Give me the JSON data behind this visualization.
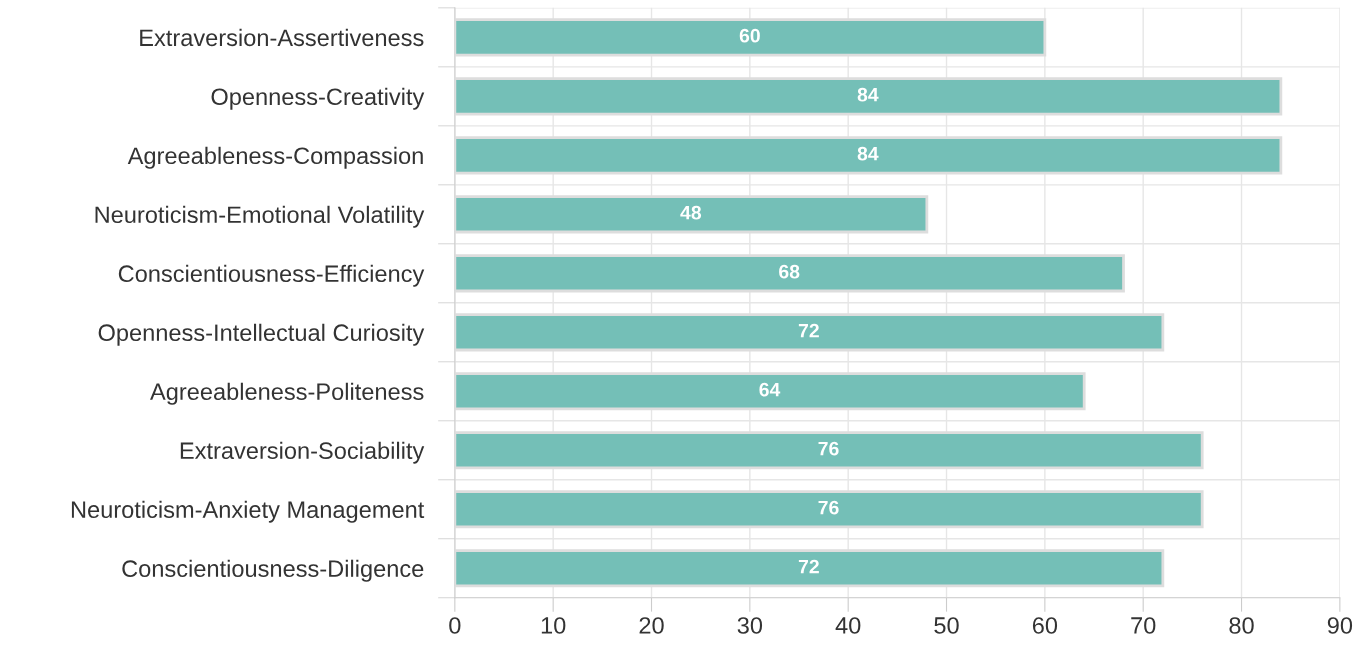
{
  "chart_data": {
    "type": "bar",
    "orientation": "horizontal",
    "categories": [
      "Extraversion-Assertiveness",
      "Openness-Creativity",
      "Agreeableness-Compassion",
      "Neuroticism-Emotional Volatility",
      "Conscientiousness-Efficiency",
      "Openness-Intellectual Curiosity",
      "Agreeableness-Politeness",
      "Extraversion-Sociability",
      "Neuroticism-Anxiety Management",
      "Conscientiousness-Diligence"
    ],
    "values": [
      60,
      84,
      84,
      48,
      68,
      72,
      64,
      76,
      76,
      72
    ],
    "color": "#74bfb7",
    "xlim": [
      0,
      90
    ],
    "xticks": [
      0,
      10,
      20,
      30,
      40,
      50,
      60,
      70,
      80,
      90
    ],
    "grid": true,
    "data_labels": true
  }
}
